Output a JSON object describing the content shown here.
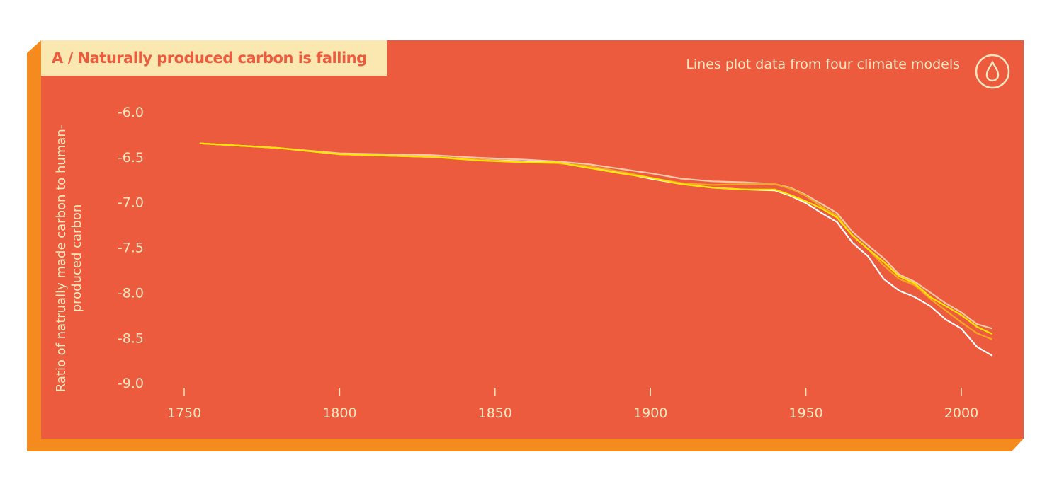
{
  "chart_data": {
    "type": "line",
    "title": "A / Naturally produced carbon is falling",
    "note": "Lines plot data from four climate models",
    "ylabel": "Ratio of natrually made carbon to human-produced carbon",
    "xlim": [
      1740,
      2015
    ],
    "ylim": [
      -9.0,
      -6.0
    ],
    "xticks": [
      "1750",
      "1800",
      "1850",
      "1900",
      "1950",
      "2000"
    ],
    "yticks": [
      "-6.0",
      "-6.5",
      "-7.0",
      "-7.5",
      "-8.0",
      "-8.5",
      "-9.0"
    ],
    "grid": false,
    "x": [
      1755,
      1780,
      1800,
      1830,
      1845,
      1860,
      1870,
      1880,
      1890,
      1900,
      1910,
      1920,
      1930,
      1940,
      1945,
      1950,
      1955,
      1960,
      1965,
      1970,
      1975,
      1980,
      1985,
      1990,
      1995,
      2000,
      2005,
      2010
    ],
    "series": [
      {
        "color": "#ffffff",
        "values": [
          -6.35,
          -6.4,
          -6.47,
          -6.5,
          -6.53,
          -6.55,
          -6.56,
          -6.62,
          -6.67,
          -6.74,
          -6.8,
          -6.84,
          -6.86,
          -6.87,
          -6.93,
          -7.01,
          -7.12,
          -7.22,
          -7.45,
          -7.6,
          -7.85,
          -7.98,
          -8.05,
          -8.15,
          -8.3,
          -8.4,
          -8.6,
          -8.7
        ]
      },
      {
        "color": "#f8c8a8",
        "values": [
          -6.35,
          -6.4,
          -6.46,
          -6.48,
          -6.51,
          -6.53,
          -6.55,
          -6.58,
          -6.63,
          -6.68,
          -6.74,
          -6.77,
          -6.78,
          -6.8,
          -6.84,
          -6.92,
          -7.02,
          -7.12,
          -7.33,
          -7.48,
          -7.62,
          -7.8,
          -7.88,
          -8.0,
          -8.12,
          -8.22,
          -8.35,
          -8.4
        ]
      },
      {
        "color": "#f5a623",
        "values": [
          -6.35,
          -6.4,
          -6.47,
          -6.5,
          -6.53,
          -6.56,
          -6.57,
          -6.6,
          -6.66,
          -6.73,
          -6.79,
          -6.81,
          -6.8,
          -6.8,
          -6.85,
          -6.93,
          -7.05,
          -7.15,
          -7.37,
          -7.52,
          -7.7,
          -7.85,
          -7.92,
          -8.07,
          -8.2,
          -8.33,
          -8.45,
          -8.52
        ]
      },
      {
        "color": "#ffe600",
        "values": [
          -6.35,
          -6.4,
          -6.47,
          -6.5,
          -6.54,
          -6.56,
          -6.56,
          -6.62,
          -6.68,
          -6.73,
          -6.8,
          -6.84,
          -6.86,
          -6.86,
          -6.92,
          -6.99,
          -7.07,
          -7.17,
          -7.37,
          -7.52,
          -7.66,
          -7.82,
          -7.9,
          -8.05,
          -8.15,
          -8.25,
          -8.38,
          -8.46
        ]
      }
    ]
  },
  "colors": {
    "panel": "#ec5b3d",
    "side": "#f58a1f",
    "text": "#fde7c0"
  },
  "icon": "water-drop-icon"
}
